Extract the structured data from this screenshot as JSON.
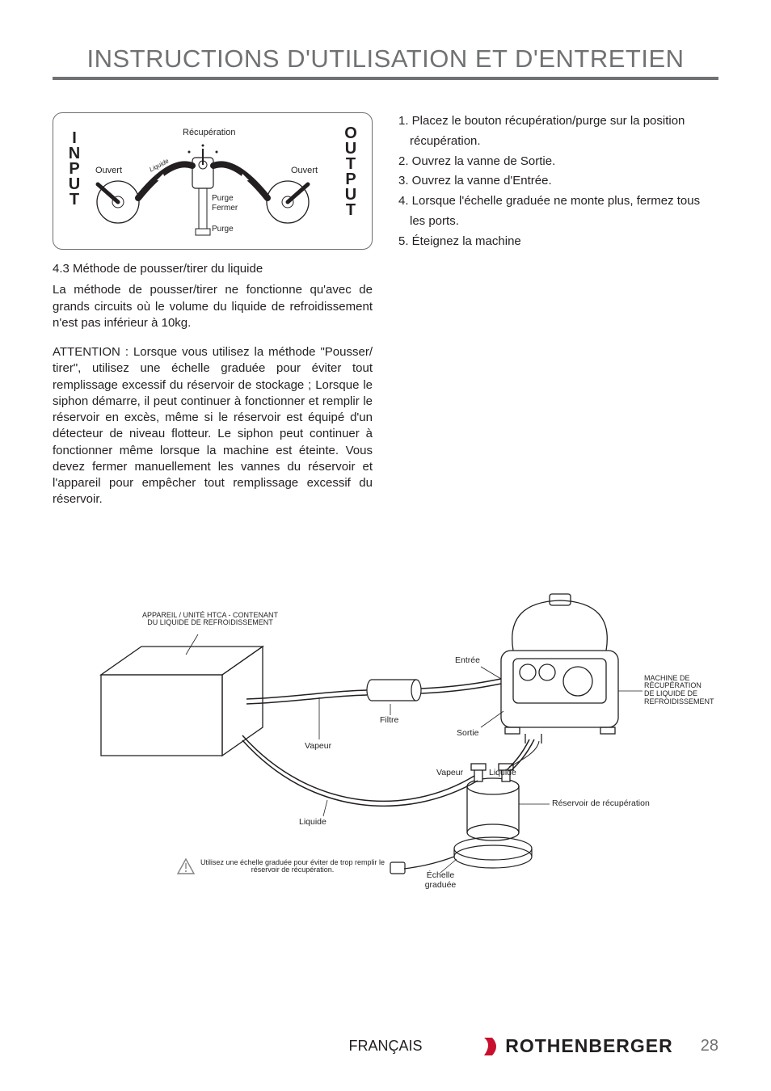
{
  "page": {
    "title": "INSTRUCTIONS D'UTILISATION ET D'ENTRETIEN",
    "language_footer": "FRANÇAIS",
    "brand": "ROTHENBERGER",
    "page_number": "28"
  },
  "colors": {
    "title_gray": "#707173",
    "text": "#231f20",
    "line": "#6d6e71",
    "brand_red": "#c8102e"
  },
  "diagram1": {
    "title_text": "Récupération",
    "left_vertical": [
      "I",
      "N",
      "P",
      "U",
      "T"
    ],
    "right_vertical": [
      "O",
      "U",
      "T",
      "P",
      "U",
      "T"
    ],
    "left_state": "Ouvert",
    "right_state": "Ouvert",
    "pipe_label": "Liquide",
    "center_labels": [
      "Purge",
      "Fermer",
      "Purge"
    ]
  },
  "left_column": {
    "section_heading": "4.3 Méthode de pousser/tirer du liquide",
    "para1": "La méthode de pousser/tirer ne fonctionne qu'avec de grands circuits où le volume du liquide de refroidissement n'est pas inférieur à 10kg.",
    "para2": "ATTENTION : Lorsque vous utilisez la méthode \"Pousser/ tirer\", utilisez une échelle graduée pour éviter tout remplissage excessif du réservoir de stockage ; Lorsque le siphon démarre, il peut continuer à fonctionner et remplir le réservoir en excès, même si le réservoir est équipé d'un détecteur de niveau flotteur. Le siphon peut continuer à fonctionner même lorsque la machine est éteinte. Vous devez fermer manuellement les vannes du réservoir et l'appareil pour empêcher tout remplissage excessif du réservoir."
  },
  "right_column": {
    "steps": [
      "1. Placez le bouton récupération/purge sur la position",
      "récupération.",
      "2. Ouvrez la vanne de Sortie.",
      "3. Ouvrez la vanne d'Entrée.",
      "4. Lorsque l'échelle graduée ne monte plus, fermez tous",
      "les ports.",
      "5. Éteignez la machine"
    ],
    "step_indents": [
      false,
      true,
      false,
      false,
      false,
      true,
      false
    ]
  },
  "big_diagram": {
    "unit_label_line1": "APPAREIL / UNITÉ HTCA - CONTENANT",
    "unit_label_line2": "DU LIQUIDE DE REFROIDISSEMENT",
    "filter": "Filtre",
    "inlet": "Entrée",
    "outlet": "Sortie",
    "vapor": "Vapeur",
    "vapor2": "Vapeur",
    "liquid": "Liquide",
    "liquid2": "Liquide",
    "tank": "Réservoir de récupération",
    "scale_line1": "Échelle",
    "scale_line2": "graduée",
    "machine_line1": "MACHINE DE",
    "machine_line2": "RÉCUPÉRATION",
    "machine_line3": "DE LIQUIDE DE",
    "machine_line4": "REFROIDISSEMENT",
    "warning_text": "Utilisez une échelle graduée pour éviter de trop remplir le réservoir de récupération."
  }
}
